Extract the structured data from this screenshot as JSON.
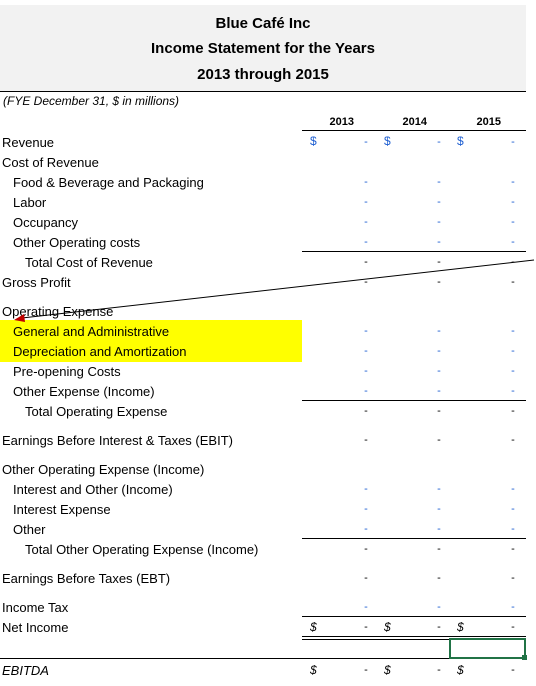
{
  "header": {
    "company": "Blue Café Inc",
    "statement": "Income Statement for the Years",
    "period": "2013 through 2015",
    "units_note": "(FYE December 31, $ in millions)"
  },
  "years": [
    "2013",
    "2014",
    "2015"
  ],
  "rows": {
    "revenue": "Revenue",
    "cost_of_revenue": "Cost of Revenue",
    "food_bev": "Food & Beverage and Packaging",
    "labor": "Labor",
    "occupancy": "Occupancy",
    "other_operating_costs": "Other Operating costs",
    "total_cost_of_revenue": "Total Cost of Revenue",
    "gross_profit": "Gross Profit",
    "operating_expense": "Operating Expense",
    "g_and_a": "General and Administrative",
    "d_and_a": "Depreciation and Amortization",
    "preopening": "Pre-opening Costs",
    "other_expense_income": "Other Expense (Income)",
    "total_operating_expense": "Total Operating Expense",
    "ebit": "Earnings Before Interest & Taxes (EBIT)",
    "other_operating_expense_income": "Other Operating Expense (Income)",
    "interest_and_other": "Interest and Other (Income)",
    "interest_expense": "Interest Expense",
    "other": "Other",
    "total_other_operating_expense": "Total Other Operating Expense (Income)",
    "ebt": "Earnings Before Taxes (EBT)",
    "income_tax": "Income Tax",
    "net_income": "Net Income",
    "ebitda": "EBITDA"
  },
  "symbols": {
    "currency": "$",
    "dash": "-"
  },
  "colors": {
    "input_blue": "#1f5fd1",
    "highlight": "#ffff00",
    "selection": "#217346",
    "title_bg": "#f2f2f2"
  }
}
